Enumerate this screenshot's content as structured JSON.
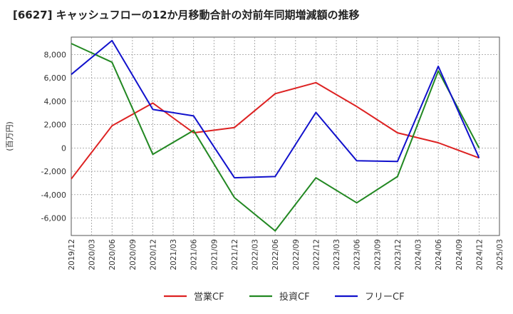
{
  "chart_data": {
    "type": "line",
    "title": "[6627]  キャッシュフローの12か月移動合計の対前年同期増減額の推移",
    "ylabel": "(百万円)",
    "xlabel": "",
    "ylim": [
      -7500,
      9500
    ],
    "yticks": [
      8000,
      6000,
      4000,
      2000,
      0,
      -2000,
      -4000,
      -6000
    ],
    "ytick_labels": [
      "8,000",
      "6,000",
      "4,000",
      "2,000",
      "0",
      "-2,000",
      "-4,000",
      "-6,000"
    ],
    "categories": [
      "2019/12",
      "2020/03",
      "2020/06",
      "2020/09",
      "2020/12",
      "2021/03",
      "2021/06",
      "2021/09",
      "2021/12",
      "2022/03",
      "2022/06",
      "2022/09",
      "2022/12",
      "2023/03",
      "2023/06",
      "2023/09",
      "2023/12",
      "2024/03",
      "2024/06",
      "2024/09",
      "2024/12",
      "2025/03"
    ],
    "series": [
      {
        "name": "営業CF",
        "color": "#dd2222",
        "x": [
          "2019/12",
          "2020/06",
          "2020/12",
          "2021/06",
          "2021/12",
          "2022/06",
          "2022/12",
          "2023/06",
          "2023/12",
          "2024/06",
          "2024/12"
        ],
        "values": [
          -2650,
          1900,
          3850,
          1300,
          1750,
          4650,
          5600,
          3550,
          1300,
          450,
          -850
        ]
      },
      {
        "name": "投資CF",
        "color": "#228822",
        "x": [
          "2019/12",
          "2020/06",
          "2020/12",
          "2021/06",
          "2021/12",
          "2022/06",
          "2022/12",
          "2023/06",
          "2023/12",
          "2024/06",
          "2024/12"
        ],
        "values": [
          8950,
          7350,
          -550,
          1500,
          -4250,
          -7100,
          -2550,
          -4700,
          -2450,
          6600,
          0
        ]
      },
      {
        "name": "フリーCF",
        "color": "#1111cc",
        "x": [
          "2019/12",
          "2020/06",
          "2020/12",
          "2021/06",
          "2021/12",
          "2022/06",
          "2022/12",
          "2023/06",
          "2023/12",
          "2024/06",
          "2024/12"
        ],
        "values": [
          6300,
          9200,
          3300,
          2750,
          -2550,
          -2450,
          3050,
          -1100,
          -1150,
          7000,
          -850
        ]
      }
    ],
    "legend_position": "bottom-center",
    "grid": true
  }
}
